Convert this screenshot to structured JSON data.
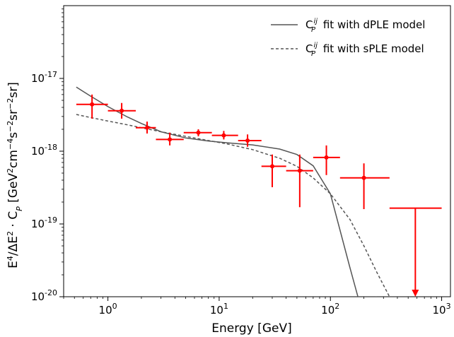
{
  "chart_data": {
    "type": "scatter",
    "xlabel": "Energy [GeV]",
    "ylabel": "E⁴/ΔE² · C_P [GeV²cm⁻⁴s⁻²sr⁻²sr]",
    "xscale": "log",
    "yscale": "log",
    "xlim": [
      0.4,
      1200
    ],
    "ylim": [
      1e-20,
      1e-16
    ],
    "x_tick_labels": [
      {
        "value": 1,
        "mant": "10",
        "exp": "0"
      },
      {
        "value": 10,
        "mant": "10",
        "exp": "1"
      },
      {
        "value": 100,
        "mant": "10",
        "exp": "2"
      },
      {
        "value": 1000,
        "mant": "10",
        "exp": "3"
      }
    ],
    "y_tick_labels": [
      {
        "value": 1e-20,
        "mant": "10",
        "exp": "-20"
      },
      {
        "value": 1e-19,
        "mant": "10",
        "exp": "-19"
      },
      {
        "value": 1e-18,
        "mant": "10",
        "exp": "-18"
      },
      {
        "value": 1e-17,
        "mant": "10",
        "exp": "-17"
      }
    ],
    "legend_position": "top-right",
    "series": [
      {
        "name": "C_P^ij fit with dPLE model",
        "kind": "line",
        "style": "solid",
        "color": "#555555",
        "x": [
          0.52,
          0.7,
          1.0,
          1.5,
          2.0,
          3.0,
          5.0,
          8.0,
          12.0,
          20.0,
          35.0,
          50.0,
          70.0,
          100.0,
          150.0,
          200.0,
          260.0
        ],
        "y": [
          7.6e-18,
          5.7e-18,
          4.1e-18,
          2.95e-18,
          2.4e-18,
          1.85e-18,
          1.52e-18,
          1.38e-18,
          1.3e-18,
          1.22e-18,
          1.07e-18,
          9e-19,
          6.3e-19,
          2.6e-19,
          2.5e-20,
          5e-21,
          1e-20
        ]
      },
      {
        "name": "C_P^ij fit with sPLE model",
        "kind": "line",
        "style": "dashed",
        "color": "#555555",
        "x": [
          0.52,
          0.7,
          1.0,
          1.5,
          2.0,
          3.0,
          5.0,
          8.0,
          12.0,
          20.0,
          35.0,
          50.0,
          70.0,
          100.0,
          150.0,
          200.0,
          260.0,
          340.0
        ],
        "y": [
          3.2e-18,
          2.9e-18,
          2.6e-18,
          2.3e-18,
          2.1e-18,
          1.85e-18,
          1.6e-18,
          1.4e-18,
          1.25e-18,
          1.05e-18,
          8e-19,
          6.2e-19,
          4.3e-19,
          2.6e-19,
          1.15e-19,
          5e-20,
          2.2e-20,
          1e-20
        ]
      },
      {
        "name": "",
        "kind": "errorbar",
        "color": "#ff0000",
        "points": [
          {
            "x": 0.72,
            "y": 4.4e-18,
            "xlo": 0.52,
            "xhi": 1.0,
            "ylo": 2.8e-18,
            "yhi": 6e-18
          },
          {
            "x": 1.33,
            "y": 3.6e-18,
            "xlo": 1.0,
            "xhi": 1.78,
            "ylo": 2.8e-18,
            "yhi": 4.6e-18
          },
          {
            "x": 2.25,
            "y": 2.1e-18,
            "xlo": 1.78,
            "xhi": 2.7,
            "ylo": 1.75e-18,
            "yhi": 2.55e-18
          },
          {
            "x": 3.6,
            "y": 1.45e-18,
            "xlo": 2.7,
            "xhi": 4.8,
            "ylo": 1.2e-18,
            "yhi": 1.8e-18
          },
          {
            "x": 6.5,
            "y": 1.8e-18,
            "xlo": 4.8,
            "xhi": 8.6,
            "ylo": 1.6e-18,
            "yhi": 2e-18
          },
          {
            "x": 11.0,
            "y": 1.65e-18,
            "xlo": 8.6,
            "xhi": 14.8,
            "ylo": 1.45e-18,
            "yhi": 1.9e-18
          },
          {
            "x": 18.0,
            "y": 1.4e-18,
            "xlo": 14.8,
            "xhi": 24.0,
            "ylo": 1.15e-18,
            "yhi": 1.7e-18
          },
          {
            "x": 30.0,
            "y": 6.2e-19,
            "xlo": 24.0,
            "xhi": 40.0,
            "ylo": 3.2e-19,
            "yhi": 9e-19
          },
          {
            "x": 53.0,
            "y": 5.4e-19,
            "xlo": 40.0,
            "xhi": 70.0,
            "ylo": 1.7e-19,
            "yhi": 9e-19
          },
          {
            "x": 92.0,
            "y": 8.2e-19,
            "xlo": 70.0,
            "xhi": 122.0,
            "ylo": 4.7e-19,
            "yhi": 1.2e-18
          },
          {
            "x": 200.0,
            "y": 4.3e-19,
            "xlo": 122.0,
            "xhi": 340.0,
            "ylo": 1.6e-19,
            "yhi": 6.8e-19
          }
        ]
      },
      {
        "name": "",
        "kind": "upper-limit",
        "color": "#ff0000",
        "points": [
          {
            "x": 580.0,
            "y": 1.65e-19,
            "xlo": 340.0,
            "xhi": 1000.0
          }
        ]
      }
    ]
  }
}
